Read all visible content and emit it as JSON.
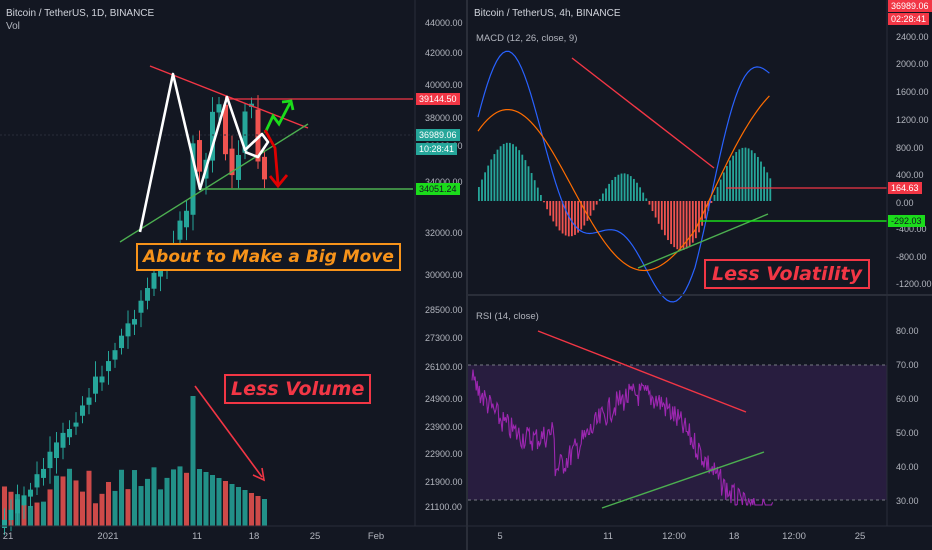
{
  "left": {
    "title": "Bitcoin / TetherUS, 1D, BINANCE",
    "sub": "Vol",
    "yticks": [
      "44000.00",
      "42000.00",
      "40000.00",
      "38000.00",
      "36000.00",
      "34000.00",
      "32000.00",
      "30000.00",
      "28500.00",
      "27300.00",
      "26100.00",
      "24900.00",
      "23900.00",
      "22900.00",
      "21900.00",
      "21100.00"
    ],
    "xticks": [
      "21",
      "2021",
      "11",
      "18",
      "25",
      "Feb"
    ],
    "tags": {
      "resistance": "39144.50",
      "price": "36989.06",
      "countdown": "10:28:41",
      "support": "34051.24"
    },
    "callout_move": "About to Make a Big Move",
    "callout_volume": "Less Volume"
  },
  "right": {
    "title": "Bitcoin / TetherUS, 4h, BINANCE",
    "price_tag": "36989.06",
    "time_tag": "02:28:41",
    "macd_label": "MACD (12, 26, close, 9)",
    "macd_ticks": [
      "2400.00",
      "2000.00",
      "1600.00",
      "1200.00",
      "800.00",
      "400.00",
      "0.00",
      "-400.00",
      "-800.00",
      "-1200.00"
    ],
    "macd_tags": {
      "macd": "164.63",
      "signal": "-292.03"
    },
    "rsi_label": "RSI (14, close)",
    "rsi_ticks": [
      "80.00",
      "70.00",
      "60.00",
      "50.00",
      "40.00",
      "30.00"
    ],
    "xticks": [
      "5",
      "11",
      "12:00",
      "18",
      "12:00",
      "25"
    ],
    "callout_vol": "Less Volatility"
  },
  "colors": {
    "bg": "#131722",
    "up": "#26a69a",
    "down": "#ef5350",
    "red_line": "#f23645",
    "green_line": "#4caf50",
    "orange": "#f7931a"
  }
}
